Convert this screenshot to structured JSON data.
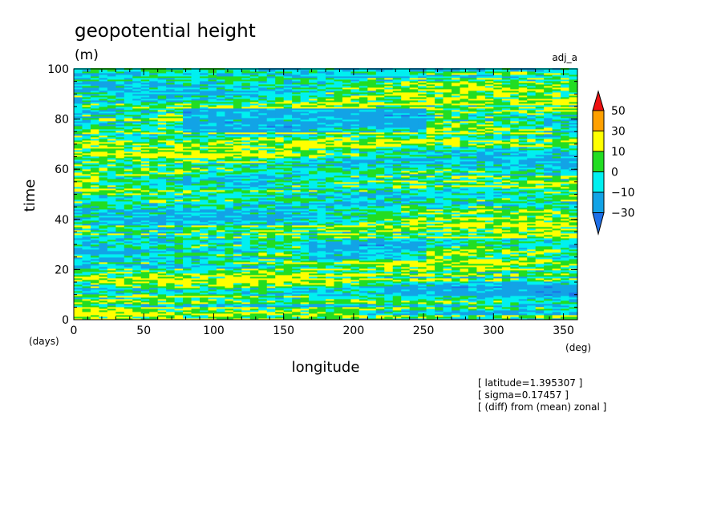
{
  "chart_data": {
    "type": "heatmap",
    "title": "geopotential height",
    "units": "(m)",
    "dataset": "adj_a",
    "xlabel": "longitude",
    "ylabel": "time",
    "x_units": "(deg)",
    "y_units": "(days)",
    "xlim": [
      0,
      360
    ],
    "ylim": [
      0,
      100
    ],
    "x_ticks": [
      "0",
      "50",
      "100",
      "150",
      "200",
      "250",
      "300",
      "350"
    ],
    "y_ticks": [
      "0",
      "20",
      "40",
      "60",
      "80",
      "100"
    ],
    "colorbar": {
      "labels": [
        "50",
        "30",
        "10",
        "0",
        "−10",
        "−30"
      ],
      "levels": [
        -30,
        -10,
        0,
        10,
        30,
        50
      ],
      "colors": [
        "#1e6fe8",
        "#12a3e6",
        "#00f0f0",
        "#22dd22",
        "#ffff00",
        "#ffa000",
        "#ee1111"
      ]
    },
    "annotations": [
      "[ latitude=1.395307 ]",
      "[ sigma=0.17457 ]",
      "[ (diff) from (mean) zonal ]"
    ]
  }
}
